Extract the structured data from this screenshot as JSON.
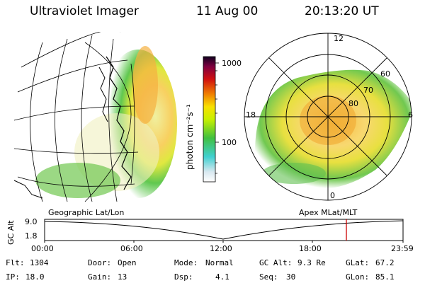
{
  "header": {
    "instrument": "Ultraviolet Imager",
    "date": "11 Aug 00",
    "time": "20:13:20 UT"
  },
  "colorbar": {
    "label": "photon cm⁻²s⁻¹",
    "ticks": [
      "1000",
      "100"
    ],
    "scale": "log"
  },
  "left_panel": {
    "title": "Geographic Lat/Lon"
  },
  "right_panel": {
    "title": "Apex MLat/MLT",
    "mlt_labels": [
      "12",
      "18",
      "6",
      "0"
    ],
    "mlat_labels": [
      "60",
      "70",
      "80"
    ]
  },
  "altitude_plot": {
    "ylabel": "GC Alt",
    "yticks": [
      "9.0",
      "1.8"
    ],
    "xticks": [
      "00:00",
      "06:00",
      "12:00",
      "18:00",
      "23:59"
    ],
    "marker_time": "20:13"
  },
  "status": {
    "row1": [
      {
        "label": "Flt:",
        "value": "1304"
      },
      {
        "label": "Door:",
        "value": "Open"
      },
      {
        "label": "Mode:",
        "value": "Normal"
      },
      {
        "label": "GC Alt:",
        "value": "9.3 Re"
      },
      {
        "label": "GLat:",
        "value": "67.2"
      }
    ],
    "row2": [
      {
        "label": "IP:",
        "value": "18.0"
      },
      {
        "label": "Gain:",
        "value": "13"
      },
      {
        "label": "Dsp:",
        "value": "4.1"
      },
      {
        "label": "Seq:",
        "value": "30"
      },
      {
        "label": "GLon:",
        "value": "85.1"
      }
    ]
  },
  "colors": {
    "marker": "#cc0000"
  }
}
